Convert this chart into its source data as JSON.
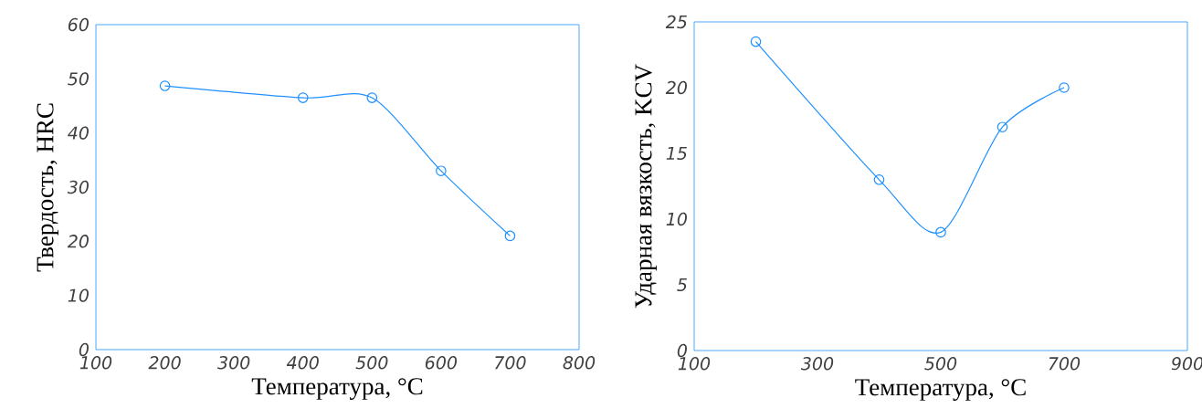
{
  "chart_data": [
    {
      "type": "line",
      "xlabel": "Температура, °С",
      "ylabel": "Твердость, HRC",
      "x": [
        200,
        400,
        500,
        600,
        700
      ],
      "values": [
        48.7,
        46.5,
        46.5,
        33,
        21
      ],
      "color": "#1e90ff",
      "marker": "circle",
      "xlim": [
        100,
        800
      ],
      "ylim": [
        0,
        60
      ],
      "xticks": [
        100,
        200,
        300,
        400,
        500,
        600,
        700,
        800
      ],
      "yticks": [
        0,
        10,
        20,
        30,
        40,
        50,
        60
      ]
    },
    {
      "type": "line",
      "xlabel": "Температура, °С",
      "ylabel": "Ударная вязкость, KCV",
      "x": [
        200,
        400,
        500,
        600,
        700
      ],
      "values": [
        23.5,
        13,
        9,
        17,
        20
      ],
      "color": "#1e90ff",
      "marker": "circle",
      "xlim": [
        100,
        900
      ],
      "ylim": [
        0,
        25
      ],
      "xticks": [
        100,
        300,
        500,
        700,
        900
      ],
      "yticks": [
        0,
        5,
        10,
        15,
        20,
        25
      ]
    }
  ]
}
